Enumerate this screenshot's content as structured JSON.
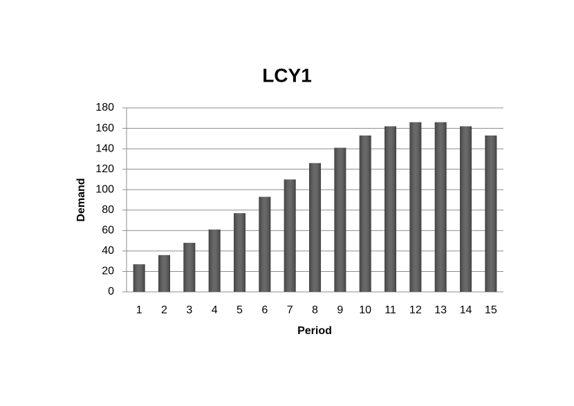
{
  "chart_data": {
    "type": "bar",
    "title": "LCY1",
    "x_label": "Period",
    "y_label": "Demand",
    "categories": [
      "1",
      "2",
      "3",
      "4",
      "5",
      "6",
      "7",
      "8",
      "9",
      "10",
      "11",
      "12",
      "13",
      "14",
      "15"
    ],
    "values": [
      27,
      36,
      48,
      61,
      77,
      93,
      110,
      126,
      141,
      153,
      162,
      166,
      166,
      162,
      153
    ],
    "color": "#555555",
    "ylim": [
      0,
      180
    ],
    "yticks": [
      0,
      20,
      40,
      60,
      80,
      100,
      120,
      140,
      160,
      180
    ],
    "grid": true
  }
}
